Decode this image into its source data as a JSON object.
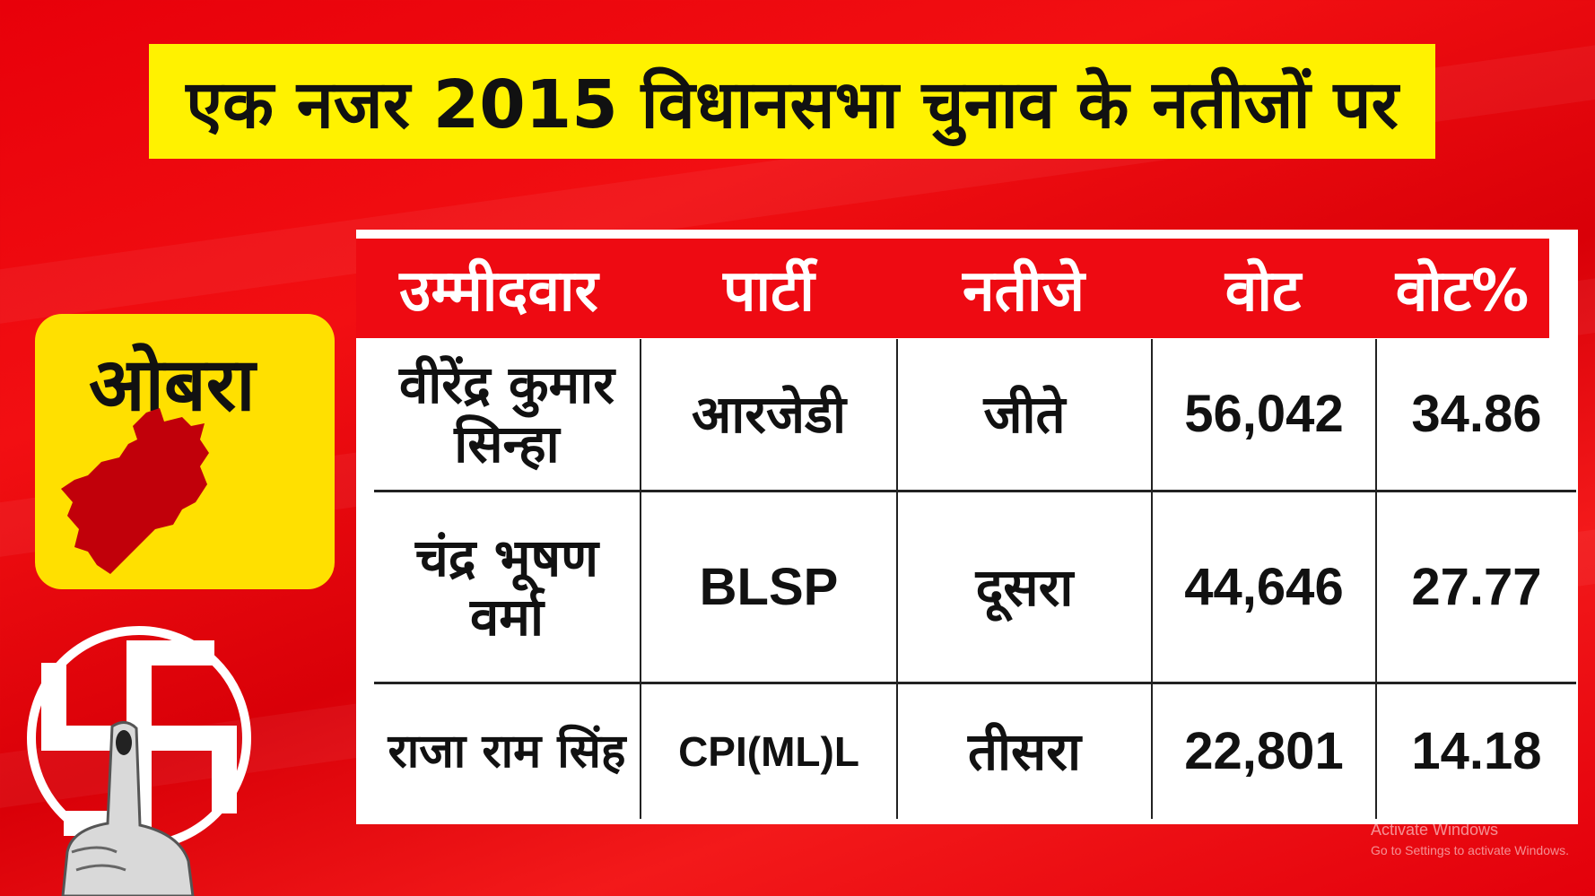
{
  "title": "एक नजर 2015 विधानसभा चुनाव के नतीजों पर",
  "constituency": {
    "name": "ओबरा",
    "map_icon": "constituency-map-icon",
    "map_color": "#c1000a"
  },
  "symbol_icon": "election-swastik-symbol-icon",
  "finger_icon": "inked-finger-icon",
  "table": {
    "headers": [
      "उम्मीदवार",
      "पार्टी",
      "नतीजे",
      "वोट",
      "वोट%"
    ],
    "rows": [
      {
        "candidate": "वीरेंद्र कुमार सिन्हा",
        "party": "आरजेडी",
        "result": "जीते",
        "votes": "56,042",
        "vote_pct": "34.86"
      },
      {
        "candidate": "चंद्र भूषण वर्मा",
        "party": "BLSP",
        "result": "दूसरा",
        "votes": "44,646",
        "vote_pct": "27.77"
      },
      {
        "candidate": "राजा राम सिंह",
        "party": "CPI(ML)L",
        "result": "तीसरा",
        "votes": "22,801",
        "vote_pct": "14.18"
      }
    ]
  },
  "watermark": {
    "line1": "Activate Windows",
    "line2": "Go to Settings to activate Windows."
  },
  "colors": {
    "background": "#e8000a",
    "title_bg": "#fff200",
    "card_bg": "#ffe000",
    "header_bg": "#ee0a12"
  }
}
